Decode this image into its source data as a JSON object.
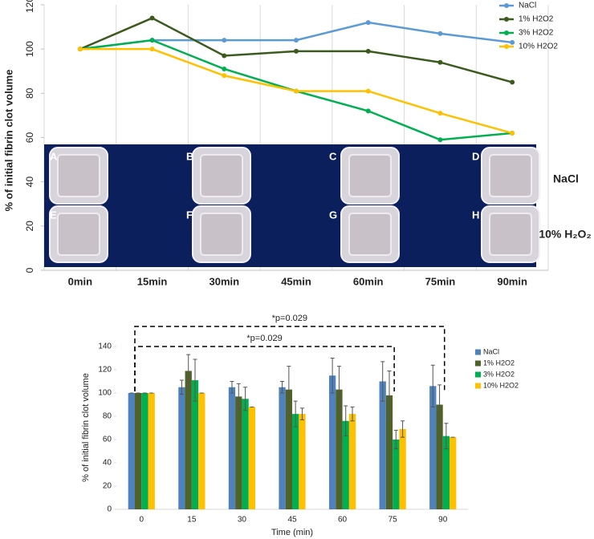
{
  "chart_data": [
    {
      "type": "line",
      "y_label": "% of initial fibrin clot volume",
      "categories": [
        "0min",
        "15min",
        "30min",
        "45min",
        "60min",
        "75min",
        "90min"
      ],
      "ylim": [
        0,
        120
      ],
      "yticks": [
        0,
        20,
        40,
        60,
        80,
        100,
        120
      ],
      "legend": "top-right",
      "series": [
        {
          "name": "NaCl",
          "color": "#5b9bd5",
          "values": [
            100,
            104,
            104,
            104,
            112,
            107,
            103
          ]
        },
        {
          "name": "1% H2O2",
          "color": "#3d5a1e",
          "values": [
            100,
            114,
            97,
            99,
            99,
            94,
            85
          ]
        },
        {
          "name": "3% H2O2",
          "color": "#00b050",
          "values": [
            100,
            104,
            91,
            81,
            72,
            59,
            62
          ]
        },
        {
          "name": "10% H2O2",
          "color": "#ffc000",
          "values": [
            100,
            100,
            88,
            81,
            81,
            71,
            62
          ]
        }
      ]
    },
    {
      "type": "bar",
      "x_label": "Time (min)",
      "y_label": "% of initial fibrin clot volume",
      "categories": [
        "0",
        "15",
        "30",
        "45",
        "60",
        "75",
        "90"
      ],
      "ylim": [
        0,
        140
      ],
      "yticks": [
        0,
        20,
        40,
        60,
        80,
        100,
        120,
        140
      ],
      "legend": "right",
      "annotations": [
        "*p=0.029",
        "*p=0.029"
      ],
      "series": [
        {
          "name": "NaCl",
          "color": "#4f81bd",
          "values": [
            100,
            105,
            105,
            105,
            115,
            110,
            106
          ],
          "errors": [
            0,
            6,
            5,
            5,
            15,
            17,
            18
          ]
        },
        {
          "name": "1% H2O2",
          "color": "#4f6228",
          "values": [
            100,
            119,
            97,
            103,
            103,
            98,
            90
          ],
          "errors": [
            0,
            14,
            11,
            20,
            20,
            21,
            17
          ]
        },
        {
          "name": "3% H2O2",
          "color": "#00b050",
          "values": [
            100,
            111,
            95,
            82,
            76,
            60,
            63
          ],
          "errors": [
            0,
            18,
            10,
            11,
            13,
            8,
            11
          ]
        },
        {
          "name": "10% H2O2",
          "color": "#ffc000",
          "values": [
            100,
            100,
            88,
            82,
            82,
            69,
            62
          ],
          "errors": [
            0,
            0,
            0,
            5,
            6,
            7,
            0
          ]
        }
      ]
    }
  ],
  "panel": {
    "labels": [
      "A",
      "B",
      "C",
      "D",
      "E",
      "F",
      "G",
      "H"
    ],
    "row_labels": [
      "NaCl",
      "10% H₂O₂"
    ]
  }
}
